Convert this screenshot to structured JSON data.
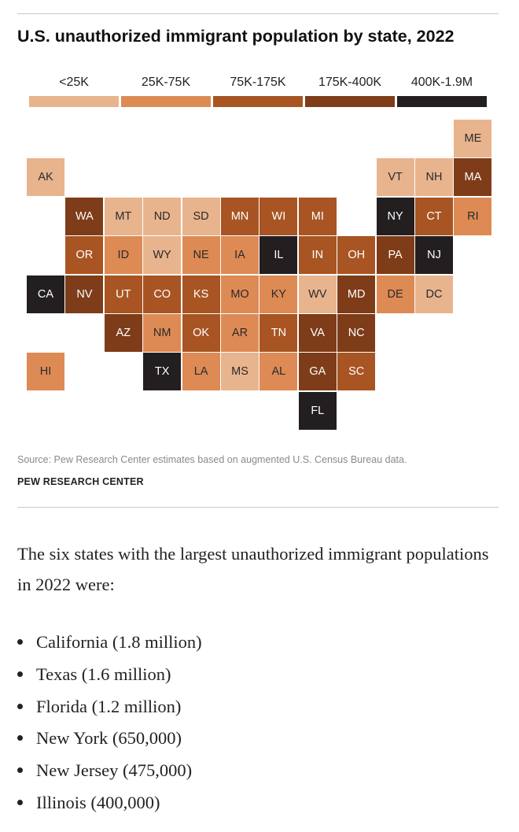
{
  "title": "U.S. unauthorized immigrant population by state, 2022",
  "legend": [
    {
      "label": "<25K",
      "color": "#e8b48d"
    },
    {
      "label": "25K-75K",
      "color": "#de8a55"
    },
    {
      "label": "75K-175K",
      "color": "#a85523"
    },
    {
      "label": "175K-400K",
      "color": "#7e3c19"
    },
    {
      "label": "400K-1.9M",
      "color": "#231f20"
    }
  ],
  "map": {
    "states": [
      {
        "abbr": "ME",
        "bin": 0
      },
      {
        "abbr": "AK",
        "bin": 0
      },
      {
        "abbr": "VT",
        "bin": 0
      },
      {
        "abbr": "NH",
        "bin": 0
      },
      {
        "abbr": "MA",
        "bin": 3
      },
      {
        "abbr": "WA",
        "bin": 3
      },
      {
        "abbr": "MT",
        "bin": 0
      },
      {
        "abbr": "ND",
        "bin": 0
      },
      {
        "abbr": "SD",
        "bin": 0
      },
      {
        "abbr": "MN",
        "bin": 2
      },
      {
        "abbr": "WI",
        "bin": 2
      },
      {
        "abbr": "MI",
        "bin": 2
      },
      {
        "abbr": "NY",
        "bin": 4
      },
      {
        "abbr": "CT",
        "bin": 2
      },
      {
        "abbr": "RI",
        "bin": 1
      },
      {
        "abbr": "OR",
        "bin": 2
      },
      {
        "abbr": "ID",
        "bin": 1
      },
      {
        "abbr": "WY",
        "bin": 0
      },
      {
        "abbr": "NE",
        "bin": 1
      },
      {
        "abbr": "IA",
        "bin": 1
      },
      {
        "abbr": "IL",
        "bin": 4
      },
      {
        "abbr": "IN",
        "bin": 2
      },
      {
        "abbr": "OH",
        "bin": 2
      },
      {
        "abbr": "PA",
        "bin": 3
      },
      {
        "abbr": "NJ",
        "bin": 4
      },
      {
        "abbr": "CA",
        "bin": 4
      },
      {
        "abbr": "NV",
        "bin": 3
      },
      {
        "abbr": "UT",
        "bin": 2
      },
      {
        "abbr": "CO",
        "bin": 2
      },
      {
        "abbr": "KS",
        "bin": 2
      },
      {
        "abbr": "MO",
        "bin": 1
      },
      {
        "abbr": "KY",
        "bin": 1
      },
      {
        "abbr": "WV",
        "bin": 0
      },
      {
        "abbr": "MD",
        "bin": 3
      },
      {
        "abbr": "DE",
        "bin": 1
      },
      {
        "abbr": "DC",
        "bin": 0
      },
      {
        "abbr": "AZ",
        "bin": 3
      },
      {
        "abbr": "NM",
        "bin": 1
      },
      {
        "abbr": "OK",
        "bin": 2
      },
      {
        "abbr": "AR",
        "bin": 1
      },
      {
        "abbr": "TN",
        "bin": 2
      },
      {
        "abbr": "VA",
        "bin": 3
      },
      {
        "abbr": "NC",
        "bin": 3
      },
      {
        "abbr": "HI",
        "bin": 1
      },
      {
        "abbr": "TX",
        "bin": 4
      },
      {
        "abbr": "LA",
        "bin": 1
      },
      {
        "abbr": "MS",
        "bin": 0
      },
      {
        "abbr": "AL",
        "bin": 1
      },
      {
        "abbr": "GA",
        "bin": 3
      },
      {
        "abbr": "SC",
        "bin": 2
      },
      {
        "abbr": "FL",
        "bin": 4
      }
    ]
  },
  "source": "Source: Pew Research Center estimates based on augmented U.S. Census Bureau data.",
  "brand": "PEW RESEARCH CENTER",
  "intro": "The six states with the largest unauthorized immigrant populations in 2022 were:",
  "top_states": [
    "California (1.8 million)",
    "Texas (1.6 million)",
    "Florida (1.2 million)",
    "New York (650,000)",
    "New Jersey (475,000)",
    "Illinois (400,000)"
  ]
}
